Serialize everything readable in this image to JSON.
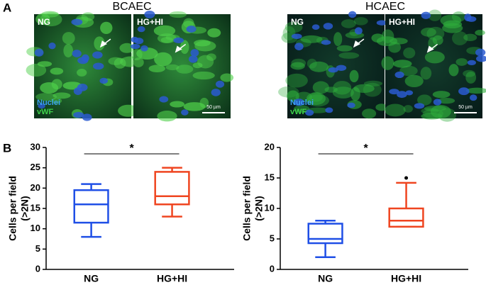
{
  "panels": {
    "a": "A",
    "b": "B"
  },
  "images": [
    {
      "title": "BCAEC",
      "conditions": [
        "NG",
        "HG+HI"
      ],
      "stains": [
        "Nuclei",
        "vWF"
      ],
      "scale": "50 µm"
    },
    {
      "title": "HCAEC",
      "conditions": [
        "NG",
        "HG+HI"
      ],
      "stains": [
        "Nuclei",
        "vWF"
      ],
      "scale": "50 µm"
    }
  ],
  "chart_data": [
    {
      "type": "box",
      "ylabel": [
        "Cells per field",
        "(>2N)"
      ],
      "categories": [
        "NG",
        "HG+HI"
      ],
      "annotation": "*",
      "boxes": [
        {
          "color": "#1f4fe6",
          "whislo": 8,
          "q1": 11.5,
          "med": 16,
          "q3": 19.5,
          "whishi": 21,
          "outliers": []
        },
        {
          "color": "#ef4520",
          "whislo": 13,
          "q1": 16,
          "med": 18,
          "q3": 24,
          "whishi": 25,
          "outliers": []
        }
      ],
      "ylim": [
        0,
        30
      ],
      "yticks": [
        0,
        5,
        10,
        15,
        20,
        25,
        30
      ]
    },
    {
      "type": "box",
      "ylabel": [
        "Cells per field",
        "(>2N)"
      ],
      "categories": [
        "NG",
        "HG+HI"
      ],
      "annotation": "*",
      "boxes": [
        {
          "color": "#1f4fe6",
          "whislo": 2,
          "q1": 4.3,
          "med": 5,
          "q3": 7.5,
          "whishi": 8,
          "outliers": []
        },
        {
          "color": "#ef4520",
          "whislo": 7,
          "q1": 7,
          "med": 8,
          "q3": 10,
          "whishi": 14.2,
          "outliers": [
            15
          ]
        }
      ],
      "ylim": [
        0,
        20
      ],
      "yticks": [
        0,
        5,
        10,
        15,
        20
      ]
    }
  ]
}
